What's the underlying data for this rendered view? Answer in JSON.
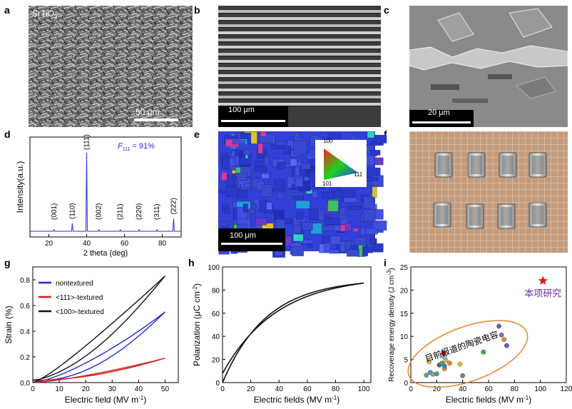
{
  "panels": {
    "a": {
      "letter": "a",
      "material": "SrTiO",
      "material_sub": "3",
      "scalebar": "50 μm"
    },
    "b": {
      "letter": "b",
      "scalebar": "100 μm"
    },
    "c": {
      "letter": "c",
      "scalebar": "20 μm"
    },
    "d": {
      "letter": "d"
    },
    "e": {
      "letter": "e",
      "scalebar": "100 μm",
      "ipf": {
        "top": "100",
        "bottom_left": "101",
        "right": "111"
      }
    },
    "f": {
      "letter": "f"
    },
    "g": {
      "letter": "g"
    },
    "h": {
      "letter": "h"
    },
    "i": {
      "letter": "i",
      "highlight_label": "本项研究",
      "ellipse_label": "目前报道的陶瓷电容"
    }
  },
  "chart_data": [
    {
      "id": "d",
      "type": "line",
      "xlabel": "2 theta (deg)",
      "ylabel": "Intensity(a.u.)",
      "xlim": [
        10,
        90
      ],
      "xticks": [
        20,
        40,
        60,
        80
      ],
      "annotation": {
        "F": "F",
        "sub": "111",
        "text": " = 91%"
      },
      "color": "#2b2bd4",
      "peaks": [
        {
          "label": "(001)",
          "x": 22.8,
          "h": 0.02
        },
        {
          "label": "(110)",
          "x": 32.4,
          "h": 0.1
        },
        {
          "label": "(111)",
          "x": 40.0,
          "h": 1.0
        },
        {
          "label": "(002)",
          "x": 46.5,
          "h": 0.02
        },
        {
          "label": "(211)",
          "x": 57.8,
          "h": 0.02
        },
        {
          "label": "(220)",
          "x": 67.8,
          "h": 0.02
        },
        {
          "label": "(311)",
          "x": 77.2,
          "h": 0.02
        },
        {
          "label": "(222)",
          "x": 86.0,
          "h": 0.16
        }
      ]
    },
    {
      "id": "g",
      "type": "line",
      "xlabel": "Electric field (MV m",
      "xlabel_sup": "-1",
      "xlabel_end": ")",
      "ylabel": "Strain (%)",
      "xlim": [
        0,
        55
      ],
      "ylim": [
        0,
        0.9
      ],
      "xticks": [
        0,
        10,
        20,
        30,
        40,
        50
      ],
      "yticks": [
        0.0,
        0.2,
        0.4,
        0.6,
        0.8
      ],
      "legend_position": "top-left",
      "series": [
        {
          "name": "nontextured",
          "color": "#1f2ecf",
          "max": 0.55,
          "exp": 1.6,
          "width": 0.045
        },
        {
          "name": "<111>-textured",
          "color": "#d81f1f",
          "max": 0.19,
          "exp": 1.5,
          "width": 0.012
        },
        {
          "name": "<100>-textured",
          "color": "#111111",
          "max": 0.83,
          "exp": 1.3,
          "width": 0.06
        }
      ]
    },
    {
      "id": "h",
      "type": "line",
      "xlabel": "Electric fields (MV m",
      "xlabel_sup": "-1",
      "xlabel_end": ")",
      "ylabel": "Polarization (μC cm",
      "ylabel_sup": "-2",
      "ylabel_end": ")",
      "xlim": [
        0,
        105
      ],
      "ylim": [
        0,
        100
      ],
      "xticks": [
        0,
        20,
        40,
        60,
        80,
        100
      ],
      "yticks": [
        0,
        20,
        40,
        60,
        80,
        100
      ],
      "series": [
        {
          "name": "",
          "color": "#111111",
          "x_max": 100,
          "p_max": 86,
          "p0": 8
        }
      ]
    },
    {
      "id": "i",
      "type": "scatter",
      "xlabel": "Electric fields (MV m",
      "xlabel_sup": "-1",
      "xlabel_end": ")",
      "ylabel": "Recoverage energy  density (J cm",
      "ylabel_sup": "-3",
      "ylabel_end": ")",
      "xlim": [
        0,
        120
      ],
      "ylim": [
        0,
        25
      ],
      "xticks": [
        0,
        20,
        40,
        60,
        80,
        100,
        120
      ],
      "yticks": [
        0,
        5,
        10,
        15,
        20,
        25
      ],
      "highlight": {
        "x": 102,
        "y": 22,
        "color": "#e01b1b"
      },
      "points": [
        {
          "x": 12,
          "y": 1.6,
          "c": "#7aa05a"
        },
        {
          "x": 15,
          "y": 2.2,
          "c": "#4a9fd4"
        },
        {
          "x": 17,
          "y": 1.8,
          "c": "#8ca0b8"
        },
        {
          "x": 20,
          "y": 1.9,
          "c": "#3cb04c"
        },
        {
          "x": 14,
          "y": 4.5,
          "c": "#e6b830"
        },
        {
          "x": 22,
          "y": 3.8,
          "c": "#6a4fa8"
        },
        {
          "x": 24,
          "y": 4.2,
          "c": "#3cb04c"
        },
        {
          "x": 26,
          "y": 3.0,
          "c": "#e08a2a"
        },
        {
          "x": 26,
          "y": 3.6,
          "c": "#2a8ad0"
        },
        {
          "x": 27,
          "y": 4.8,
          "c": "#e6b830"
        },
        {
          "x": 26,
          "y": 5.5,
          "c": "#7ab8e0"
        },
        {
          "x": 25,
          "y": 6.3,
          "c": "#d81f1f"
        },
        {
          "x": 30,
          "y": 4.2,
          "c": "#e08a2a"
        },
        {
          "x": 38,
          "y": 4.0,
          "c": "#e6b830"
        },
        {
          "x": 40,
          "y": 1.5,
          "c": "#7a7a7a"
        },
        {
          "x": 56,
          "y": 6.6,
          "c": "#3cb04c"
        },
        {
          "x": 68,
          "y": 12.2,
          "c": "#4a6fd0"
        },
        {
          "x": 70,
          "y": 10.3,
          "c": "#8a6ad0"
        },
        {
          "x": 72,
          "y": 9.3,
          "c": "#e08a2a"
        },
        {
          "x": 74,
          "y": 8.0,
          "c": "#4a6fd0"
        }
      ]
    }
  ]
}
